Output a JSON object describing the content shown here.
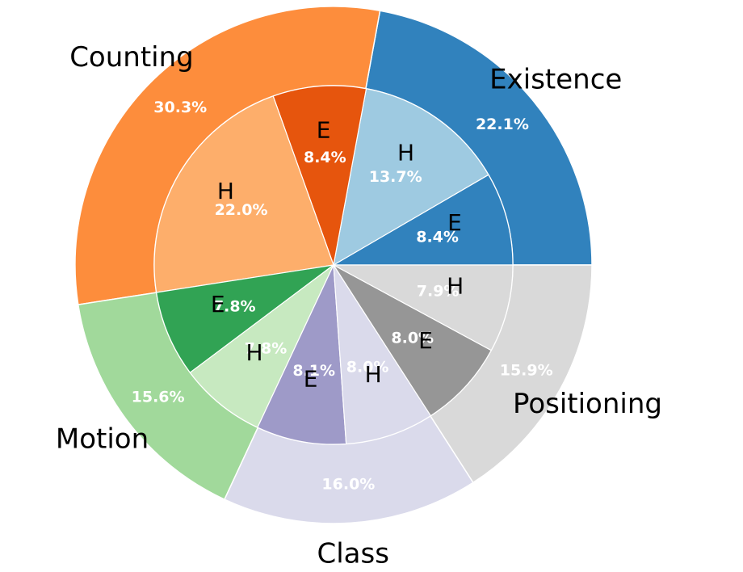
{
  "chart_data": {
    "type": "pie",
    "subtype": "nested-donut",
    "start_angle_deg": 0,
    "direction": "counterclockwise",
    "outer": [
      {
        "label": "Existence",
        "value": 22.1,
        "pct_label": "22.1%",
        "color": "#3182bd"
      },
      {
        "label": "Counting",
        "value": 30.3,
        "pct_label": "30.3%",
        "color": "#fd8d3c"
      },
      {
        "label": "Motion",
        "value": 15.6,
        "pct_label": "15.6%",
        "color": "#a1d99b"
      },
      {
        "label": "Class",
        "value": 16.0,
        "pct_label": "16.0%",
        "color": "#dadaeb"
      },
      {
        "label": "Positioning",
        "value": 15.9,
        "pct_label": "15.9%",
        "color": "#d9d9d9"
      }
    ],
    "inner": [
      {
        "label": "E",
        "parent": "Existence",
        "value": 8.4,
        "pct_label": "8.4%",
        "color": "#3182bd"
      },
      {
        "label": "H",
        "parent": "Existence",
        "value": 13.7,
        "pct_label": "13.7%",
        "color": "#9ecae1"
      },
      {
        "label": "E",
        "parent": "Counting",
        "value": 8.4,
        "pct_label": "8.4%",
        "color": "#e6550d"
      },
      {
        "label": "H",
        "parent": "Counting",
        "value": 22.0,
        "pct_label": "22.0%",
        "color": "#fdae6b"
      },
      {
        "label": "E",
        "parent": "Motion",
        "value": 7.8,
        "pct_label": "7.8%",
        "color": "#31a354"
      },
      {
        "label": "H",
        "parent": "Motion",
        "value": 7.8,
        "pct_label": "7.8%",
        "color": "#c7e9c0"
      },
      {
        "label": "E",
        "parent": "Class",
        "value": 8.1,
        "pct_label": "8.1%",
        "color": "#9e9ac8"
      },
      {
        "label": "H",
        "parent": "Class",
        "value": 8.0,
        "pct_label": "8.0%",
        "color": "#dadaeb"
      },
      {
        "label": "E",
        "parent": "Positioning",
        "value": 8.0,
        "pct_label": "8.0%",
        "color": "#969696"
      },
      {
        "label": "H",
        "parent": "Positioning",
        "value": 7.9,
        "pct_label": "7.9%",
        "color": "#d9d9d9"
      }
    ]
  }
}
